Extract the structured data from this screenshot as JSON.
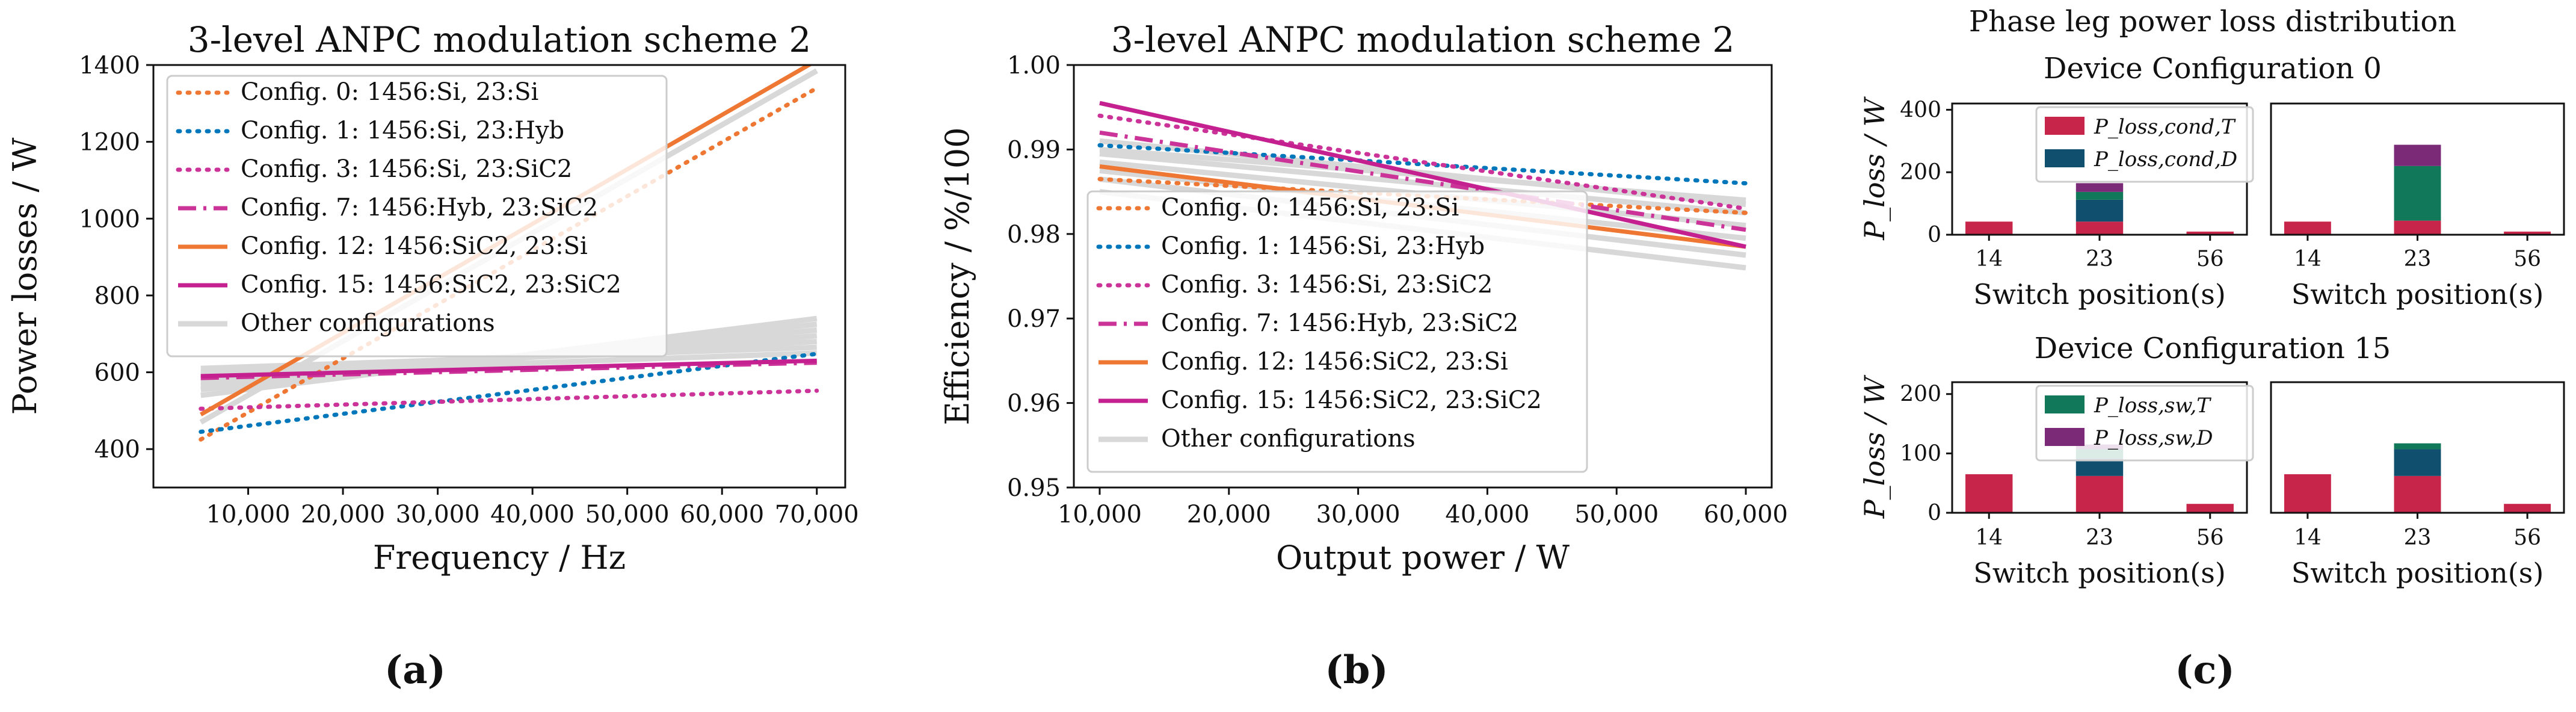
{
  "figure": {
    "panel_labels": [
      "(a)",
      "(b)",
      "(c)"
    ]
  },
  "colors": {
    "orange": "#ee7733",
    "blue": "#0077bb",
    "magenta": "#cc3399",
    "violet_mid": "#c4208f",
    "other": "#d8d8d8",
    "cond_T": "#c8254a",
    "cond_D": "#114f6e",
    "sw_T": "#12785a",
    "sw_D": "#7b2a78"
  },
  "chart_data": [
    {
      "id": "a",
      "type": "line",
      "title": "3-level ANPC modulation scheme 2",
      "xlabel": "Frequency / Hz",
      "ylabel": "Power losses / W",
      "xlim": [
        0,
        73000
      ],
      "ylim": [
        300,
        1400
      ],
      "xticks": [
        10000,
        20000,
        30000,
        40000,
        50000,
        60000,
        70000
      ],
      "xtick_labels": [
        "10,000",
        "20,000",
        "30,000",
        "40,000",
        "50,000",
        "60,000",
        "70,000"
      ],
      "yticks": [
        400,
        600,
        800,
        1000,
        1200,
        1400
      ],
      "ytick_labels": [
        "400",
        "600",
        "800",
        "1000",
        "1200",
        "1400"
      ],
      "legend_position": "upper-left",
      "series": [
        {
          "name": "Config. 0: 1456:Si, 23:Si",
          "color": "#ee7733",
          "style": "dotted",
          "x": [
            5000,
            70000
          ],
          "y": [
            425,
            1340
          ]
        },
        {
          "name": "Config. 1: 1456:Si, 23:Hyb",
          "color": "#0077bb",
          "style": "dotted",
          "x": [
            5000,
            70000
          ],
          "y": [
            445,
            648
          ]
        },
        {
          "name": "Config. 3: 1456:Si, 23:SiC2",
          "color": "#cc3399",
          "style": "dotted",
          "x": [
            5000,
            70000
          ],
          "y": [
            505,
            552
          ]
        },
        {
          "name": "Config. 7: 1456:Hyb, 23:SiC2",
          "color": "#cc3399",
          "style": "dashdot",
          "x": [
            5000,
            70000
          ],
          "y": [
            585,
            625
          ]
        },
        {
          "name": "Config. 12: 1456:SiC2, 23:Si",
          "color": "#ee7733",
          "style": "solid",
          "x": [
            5000,
            70000
          ],
          "y": [
            490,
            1412
          ]
        },
        {
          "name": "Config. 15: 1456:SiC2, 23:SiC2",
          "color": "#c4208f",
          "style": "solid",
          "x": [
            5000,
            70000
          ],
          "y": [
            590,
            630
          ]
        }
      ],
      "other_label": "Other configurations",
      "other_lines": [
        {
          "x": [
            5000,
            70000
          ],
          "y": [
            540,
            740
          ]
        },
        {
          "x": [
            5000,
            70000
          ],
          "y": [
            555,
            725
          ]
        },
        {
          "x": [
            5000,
            70000
          ],
          "y": [
            565,
            710
          ]
        },
        {
          "x": [
            5000,
            70000
          ],
          "y": [
            575,
            695
          ]
        },
        {
          "x": [
            5000,
            70000
          ],
          "y": [
            600,
            680
          ]
        },
        {
          "x": [
            5000,
            70000
          ],
          "y": [
            610,
            665
          ]
        },
        {
          "x": [
            5000,
            70000
          ],
          "y": [
            595,
            650
          ]
        },
        {
          "x": [
            5000,
            70000
          ],
          "y": [
            470,
            1385
          ]
        }
      ]
    },
    {
      "id": "b",
      "type": "line",
      "title": "3-level ANPC modulation scheme 2",
      "xlabel": "Output power / W",
      "ylabel": "Efficiency / %/100",
      "xlim": [
        8000,
        62000
      ],
      "ylim": [
        0.95,
        1.0
      ],
      "xticks": [
        10000,
        20000,
        30000,
        40000,
        50000,
        60000
      ],
      "xtick_labels": [
        "10,000",
        "20,000",
        "30,000",
        "40,000",
        "50,000",
        "60,000"
      ],
      "yticks": [
        0.95,
        0.96,
        0.97,
        0.98,
        0.99,
        1.0
      ],
      "ytick_labels": [
        "0.95",
        "0.96",
        "0.97",
        "0.98",
        "0.99",
        "1.00"
      ],
      "legend_position": "lower-left",
      "series": [
        {
          "name": "Config. 0: 1456:Si, 23:Si",
          "color": "#ee7733",
          "style": "dotted",
          "x": [
            10000,
            60000
          ],
          "y": [
            0.9865,
            0.9825
          ]
        },
        {
          "name": "Config. 1: 1456:Si, 23:Hyb",
          "color": "#0077bb",
          "style": "dotted",
          "x": [
            10000,
            60000
          ],
          "y": [
            0.9905,
            0.986
          ]
        },
        {
          "name": "Config. 3: 1456:Si, 23:SiC2",
          "color": "#cc3399",
          "style": "dotted",
          "x": [
            10000,
            60000
          ],
          "y": [
            0.994,
            0.983
          ]
        },
        {
          "name": "Config. 7: 1456:Hyb, 23:SiC2",
          "color": "#cc3399",
          "style": "dashdot",
          "x": [
            10000,
            60000
          ],
          "y": [
            0.992,
            0.9805
          ]
        },
        {
          "name": "Config. 12: 1456:SiC2, 23:Si",
          "color": "#ee7733",
          "style": "solid",
          "x": [
            10000,
            60000
          ],
          "y": [
            0.988,
            0.9785
          ]
        },
        {
          "name": "Config. 15: 1456:SiC2, 23:SiC2",
          "color": "#c4208f",
          "style": "solid",
          "x": [
            10000,
            60000
          ],
          "y": [
            0.9955,
            0.9785
          ]
        }
      ],
      "other_label": "Other configurations",
      "other_lines": [
        {
          "x": [
            10000,
            60000
          ],
          "y": [
            0.991,
            0.9835
          ]
        },
        {
          "x": [
            10000,
            60000
          ],
          "y": [
            0.9895,
            0.9825
          ]
        },
        {
          "x": [
            10000,
            60000
          ],
          "y": [
            0.9885,
            0.981
          ]
        },
        {
          "x": [
            10000,
            60000
          ],
          "y": [
            0.9875,
            0.9795
          ]
        },
        {
          "x": [
            10000,
            60000
          ],
          "y": [
            0.9865,
            0.9775
          ]
        },
        {
          "x": [
            10000,
            60000
          ],
          "y": [
            0.985,
            0.976
          ]
        },
        {
          "x": [
            10000,
            60000
          ],
          "y": [
            0.99,
            0.984
          ]
        }
      ]
    },
    {
      "id": "c",
      "type": "bar",
      "stacked": true,
      "title": "Phase leg power loss distribution",
      "xlabel": "Switch position(s)",
      "ylabel": "P_loss / W",
      "categories": [
        "14",
        "23",
        "56"
      ],
      "stack_names": [
        "P_loss,cond,T",
        "P_loss,cond,D",
        "P_loss,sw,T",
        "P_loss,sw,D"
      ],
      "groups": [
        {
          "subtitle": "Device Configuration 0",
          "ylim": [
            0,
            420
          ],
          "yticks": [
            0,
            200,
            400
          ],
          "ytick_labels": [
            "0",
            "200",
            "400"
          ],
          "legend": [
            "P_loss,cond,T",
            "P_loss,cond,D"
          ],
          "subplots": [
            {
              "stacks": [
                [
                  42,
                  0,
                  0,
                  0
                ],
                [
                  42,
                  70,
                  25,
                  28
                ],
                [
                  10,
                  0,
                  0,
                  0
                ]
              ]
            },
            {
              "stacks": [
                [
                  42,
                  0,
                  0,
                  0
                ],
                [
                  45,
                  0,
                  175,
                  68
                ],
                [
                  10,
                  0,
                  0,
                  0
                ]
              ]
            }
          ]
        },
        {
          "subtitle": "Device Configuration 15",
          "ylim": [
            0,
            220
          ],
          "yticks": [
            0,
            100,
            200
          ],
          "ytick_labels": [
            "0",
            "100",
            "200"
          ],
          "legend": [
            "P_loss,sw,T",
            "P_loss,sw,D"
          ],
          "subplots": [
            {
              "stacks": [
                [
                  65,
                  0,
                  0,
                  0
                ],
                [
                  62,
                  30,
                  15,
                  8
                ],
                [
                  15,
                  0,
                  0,
                  0
                ]
              ]
            },
            {
              "stacks": [
                [
                  65,
                  0,
                  0,
                  0
                ],
                [
                  62,
                  45,
                  10,
                  0
                ],
                [
                  15,
                  0,
                  0,
                  0
                ]
              ]
            }
          ]
        }
      ]
    }
  ]
}
